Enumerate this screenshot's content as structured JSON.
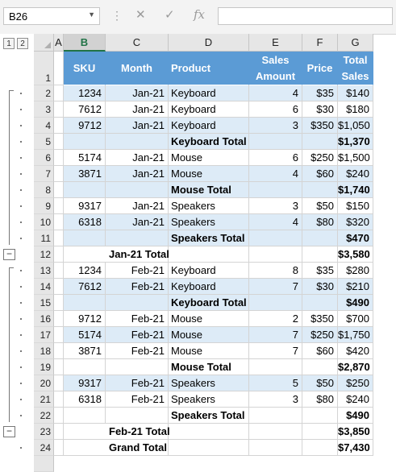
{
  "namebox": {
    "value": "B26"
  },
  "formula_bar": {
    "value": ""
  },
  "outline": {
    "levels": [
      "1",
      "2"
    ]
  },
  "columns": [
    "A",
    "B",
    "C",
    "D",
    "E",
    "F",
    "G"
  ],
  "selected_column": "B",
  "header_row": {
    "number": "1",
    "cells": [
      "SKU",
      "Month",
      "Product",
      "Sales\nAmount",
      "Price",
      "Total\nSales"
    ]
  },
  "rows": [
    {
      "n": "2",
      "sku": "1234",
      "month": "Jan-21",
      "product": "Keyboard",
      "label": "",
      "amount": "4",
      "price": "$35",
      "total": "$140",
      "band": true,
      "bold": false
    },
    {
      "n": "3",
      "sku": "7612",
      "month": "Jan-21",
      "product": "Keyboard",
      "label": "",
      "amount": "6",
      "price": "$30",
      "total": "$180",
      "band": false,
      "bold": false
    },
    {
      "n": "4",
      "sku": "9712",
      "month": "Jan-21",
      "product": "Keyboard",
      "label": "",
      "amount": "3",
      "price": "$350",
      "total": "$1,050",
      "band": true,
      "bold": false
    },
    {
      "n": "5",
      "sku": "",
      "month": "",
      "product": "Keyboard Total",
      "label": "",
      "amount": "",
      "price": "",
      "total": "$1,370",
      "band": true,
      "bold": true
    },
    {
      "n": "6",
      "sku": "5174",
      "month": "Jan-21",
      "product": "Mouse",
      "label": "",
      "amount": "6",
      "price": "$250",
      "total": "$1,500",
      "band": false,
      "bold": false
    },
    {
      "n": "7",
      "sku": "3871",
      "month": "Jan-21",
      "product": "Mouse",
      "label": "",
      "amount": "4",
      "price": "$60",
      "total": "$240",
      "band": true,
      "bold": false
    },
    {
      "n": "8",
      "sku": "",
      "month": "",
      "product": "Mouse Total",
      "label": "",
      "amount": "",
      "price": "",
      "total": "$1,740",
      "band": true,
      "bold": true
    },
    {
      "n": "9",
      "sku": "9317",
      "month": "Jan-21",
      "product": "Speakers",
      "label": "",
      "amount": "3",
      "price": "$50",
      "total": "$150",
      "band": false,
      "bold": false
    },
    {
      "n": "10",
      "sku": "6318",
      "month": "Jan-21",
      "product": "Speakers",
      "label": "",
      "amount": "4",
      "price": "$80",
      "total": "$320",
      "band": true,
      "bold": false
    },
    {
      "n": "11",
      "sku": "",
      "month": "",
      "product": "Speakers Total",
      "label": "",
      "amount": "",
      "price": "",
      "total": "$470",
      "band": true,
      "bold": true
    },
    {
      "n": "12",
      "sku": "",
      "month": "",
      "product": "",
      "label": "Jan-21 Total",
      "amount": "",
      "price": "",
      "total": "$3,580",
      "band": false,
      "bold": true
    },
    {
      "n": "13",
      "sku": "1234",
      "month": "Feb-21",
      "product": "Keyboard",
      "label": "",
      "amount": "8",
      "price": "$35",
      "total": "$280",
      "band": false,
      "bold": false
    },
    {
      "n": "14",
      "sku": "7612",
      "month": "Feb-21",
      "product": "Keyboard",
      "label": "",
      "amount": "7",
      "price": "$30",
      "total": "$210",
      "band": true,
      "bold": false
    },
    {
      "n": "15",
      "sku": "",
      "month": "",
      "product": "Keyboard Total",
      "label": "",
      "amount": "",
      "price": "",
      "total": "$490",
      "band": true,
      "bold": true
    },
    {
      "n": "16",
      "sku": "9712",
      "month": "Feb-21",
      "product": "Mouse",
      "label": "",
      "amount": "2",
      "price": "$350",
      "total": "$700",
      "band": false,
      "bold": false
    },
    {
      "n": "17",
      "sku": "5174",
      "month": "Feb-21",
      "product": "Mouse",
      "label": "",
      "amount": "7",
      "price": "$250",
      "total": "$1,750",
      "band": true,
      "bold": false
    },
    {
      "n": "18",
      "sku": "3871",
      "month": "Feb-21",
      "product": "Mouse",
      "label": "",
      "amount": "7",
      "price": "$60",
      "total": "$420",
      "band": false,
      "bold": false
    },
    {
      "n": "19",
      "sku": "",
      "month": "",
      "product": "Mouse Total",
      "label": "",
      "amount": "",
      "price": "",
      "total": "$2,870",
      "band": false,
      "bold": true
    },
    {
      "n": "20",
      "sku": "9317",
      "month": "Feb-21",
      "product": "Speakers",
      "label": "",
      "amount": "5",
      "price": "$50",
      "total": "$250",
      "band": true,
      "bold": false
    },
    {
      "n": "21",
      "sku": "6318",
      "month": "Feb-21",
      "product": "Speakers",
      "label": "",
      "amount": "3",
      "price": "$80",
      "total": "$240",
      "band": false,
      "bold": false
    },
    {
      "n": "22",
      "sku": "",
      "month": "",
      "product": "Speakers Total",
      "label": "",
      "amount": "",
      "price": "",
      "total": "$490",
      "band": false,
      "bold": true
    },
    {
      "n": "23",
      "sku": "",
      "month": "",
      "product": "",
      "label": "Feb-21 Total",
      "amount": "",
      "price": "",
      "total": "$3,850",
      "band": false,
      "bold": true
    },
    {
      "n": "24",
      "sku": "",
      "month": "",
      "product": "",
      "label": "Grand Total",
      "amount": "",
      "price": "",
      "total": "$7,430",
      "band": false,
      "bold": true
    }
  ],
  "colors": {
    "header_fill": "#5b9bd5",
    "band_fill": "#ddebf7",
    "accent": "#217346"
  },
  "icons": [
    "cancel-icon",
    "enter-icon",
    "function-icon"
  ]
}
